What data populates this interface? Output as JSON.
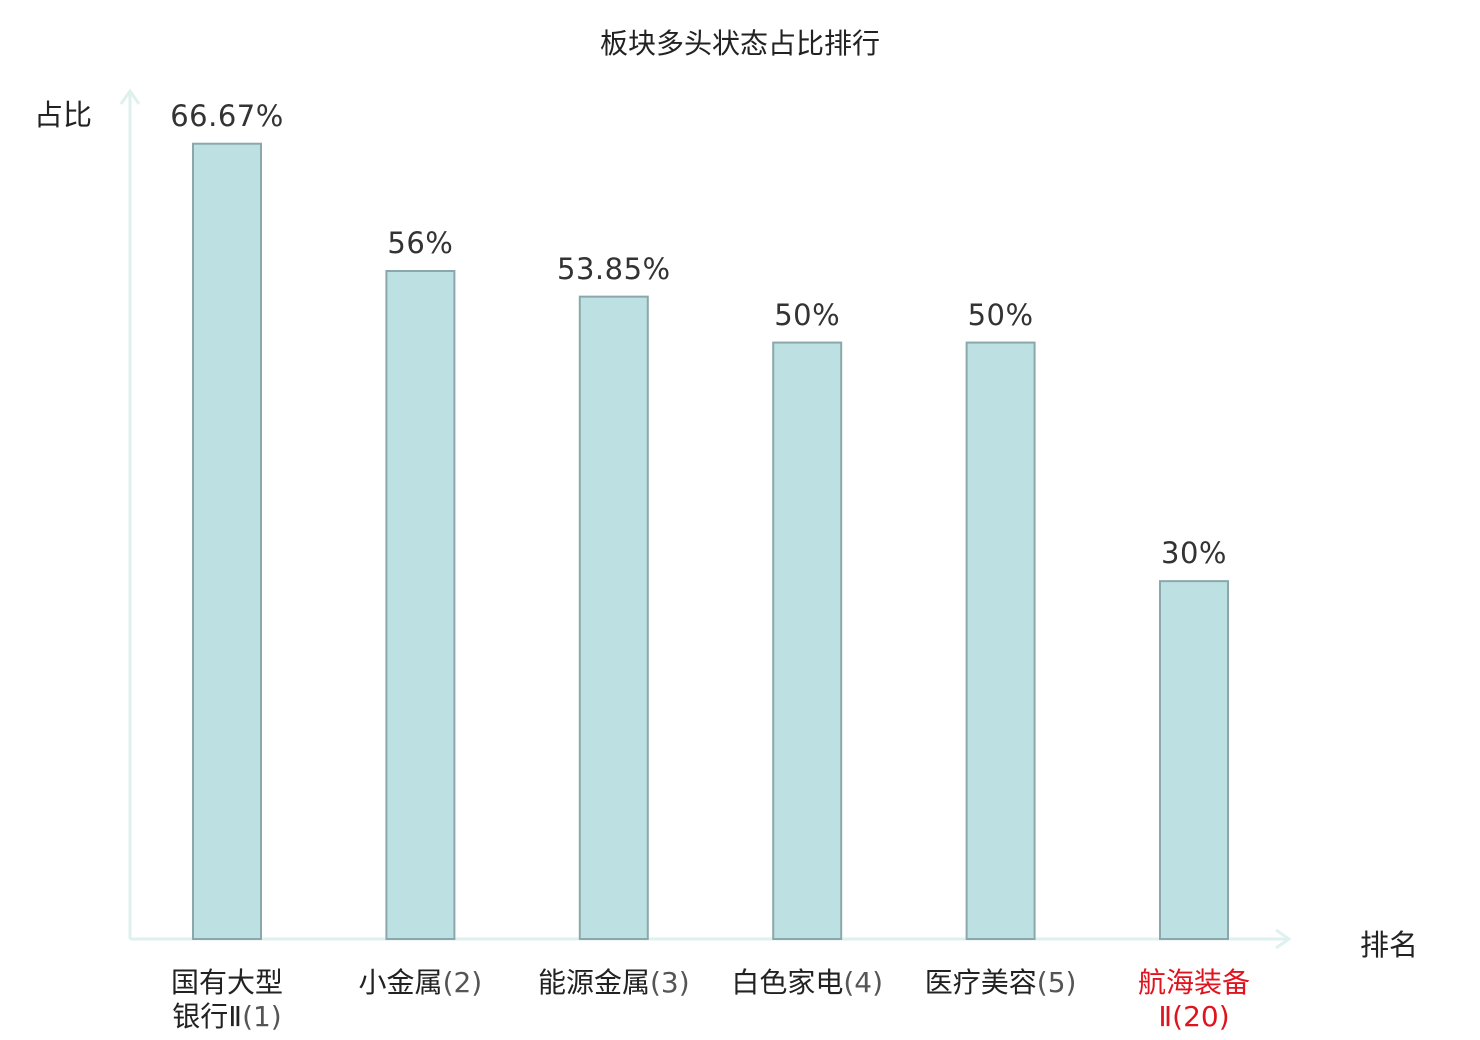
{
  "chart_data": {
    "type": "bar",
    "title": "板块多头状态占比排行",
    "ylabel": "占比",
    "xlabel": "排名",
    "ylim": [
      0,
      70
    ],
    "grid": false,
    "categories": [
      {
        "lines": [
          "国有大型",
          "银行Ⅱ"
        ],
        "rank": "(1)",
        "highlight": false
      },
      {
        "lines": [
          "小金属"
        ],
        "rank": "(2)",
        "highlight": false
      },
      {
        "lines": [
          "能源金属"
        ],
        "rank": "(3)",
        "highlight": false
      },
      {
        "lines": [
          "白色家电"
        ],
        "rank": "(4)",
        "highlight": false
      },
      {
        "lines": [
          "医疗美容"
        ],
        "rank": "(5)",
        "highlight": false
      },
      {
        "lines": [
          "航海装备",
          "Ⅱ"
        ],
        "rank": "(20)",
        "highlight": true
      }
    ],
    "values": [
      66.67,
      56,
      53.85,
      50,
      50,
      30
    ],
    "value_labels": [
      "66.67%",
      "56%",
      "53.85%",
      "50%",
      "50%",
      "30%"
    ],
    "colors": {
      "bar_fill": "#bde0e2",
      "bar_stroke": "#8aa8ab",
      "axis": "#dff1ee",
      "highlight": "#e0141e"
    }
  }
}
